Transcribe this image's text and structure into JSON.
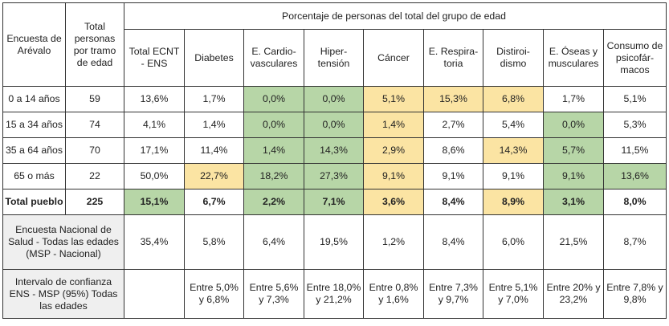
{
  "header": {
    "survey_label": "Encuesta de Arévalo",
    "total_label": "Total personas por tramo de edad",
    "group_label": "Porcentaje de personas del total del grupo de edad",
    "columns": [
      "Total ECNT - ENS",
      "Diabetes",
      "E. Cardio-vasculares",
      "Hiper-tensión",
      "Cáncer",
      "E. Respira-toria",
      "Distiroi-dismo",
      "E. Óseas y musculares",
      "Consumo de psicofár-macos"
    ]
  },
  "colors": {
    "green": "#b7d6a7",
    "yellow": "#fbe4a3",
    "gray": "#efefef"
  },
  "rows": [
    {
      "label": "0 a 14 años",
      "total": "59",
      "cells": [
        [
          "13,6%",
          ""
        ],
        [
          "1,7%",
          ""
        ],
        [
          "0,0%",
          "g"
        ],
        [
          "0,0%",
          "g"
        ],
        [
          "5,1%",
          "y"
        ],
        [
          "15,3%",
          "y"
        ],
        [
          "6,8%",
          "y"
        ],
        [
          "1,7%",
          ""
        ],
        [
          "5,1%",
          ""
        ]
      ]
    },
    {
      "label": "15 a 34 años",
      "total": "74",
      "cells": [
        [
          "4,1%",
          ""
        ],
        [
          "1,4%",
          ""
        ],
        [
          "0,0%",
          "g"
        ],
        [
          "0,0%",
          "g"
        ],
        [
          "1,4%",
          "y"
        ],
        [
          "2,7%",
          ""
        ],
        [
          "5,4%",
          ""
        ],
        [
          "0,0%",
          "g"
        ],
        [
          "5,3%",
          ""
        ]
      ]
    },
    {
      "label": "35 a 64 años",
      "total": "70",
      "cells": [
        [
          "17,1%",
          ""
        ],
        [
          "11,4%",
          ""
        ],
        [
          "1,4%",
          "g"
        ],
        [
          "14,3%",
          "g"
        ],
        [
          "2,9%",
          "y"
        ],
        [
          "8,6%",
          ""
        ],
        [
          "14,3%",
          "y"
        ],
        [
          "5,7%",
          "g"
        ],
        [
          "11,5%",
          ""
        ]
      ]
    },
    {
      "label": "65 o más",
      "total": "22",
      "cells": [
        [
          "50,0%",
          ""
        ],
        [
          "22,7%",
          "y"
        ],
        [
          "18,2%",
          "g"
        ],
        [
          "27,3%",
          "g"
        ],
        [
          "9,1%",
          "y"
        ],
        [
          "9,1%",
          ""
        ],
        [
          "9,1%",
          ""
        ],
        [
          "9,1%",
          "g"
        ],
        [
          "13,6%",
          "g"
        ]
      ]
    }
  ],
  "total_row": {
    "label": "Total pueblo",
    "total": "225",
    "cells": [
      [
        "15,1%",
        "g"
      ],
      [
        "6,7%",
        ""
      ],
      [
        "2,2%",
        "g"
      ],
      [
        "7,1%",
        "g"
      ],
      [
        "3,6%",
        "y"
      ],
      [
        "8,4%",
        ""
      ],
      [
        "8,9%",
        "y"
      ],
      [
        "3,1%",
        "g"
      ],
      [
        "8,0%",
        ""
      ]
    ]
  },
  "ens_row": {
    "label": "Encuesta Nacional de Salud - Todas las edades (MSP - Nacional)",
    "cells": [
      "35,4%",
      "5,8%",
      "6,4%",
      "19,5%",
      "1,2%",
      "8,4%",
      "6,0%",
      "21,5%",
      "8,7%"
    ]
  },
  "ci_row": {
    "label": "Intervalo de confianza ENS - MSP (95%) Todas las edades",
    "cells": [
      "",
      "Entre 5,0% y 6,8%",
      "Entre 5,6% y 7,3%",
      "Entre 18,0% y 21,2%",
      "Entre 0,8% y 1,6%",
      "Entre 7,3% y 9,7%",
      "Entre 5,1% y 7,0%",
      "Entre 20% y 23,2%",
      "Entre 7,8% y 9,8%"
    ]
  }
}
